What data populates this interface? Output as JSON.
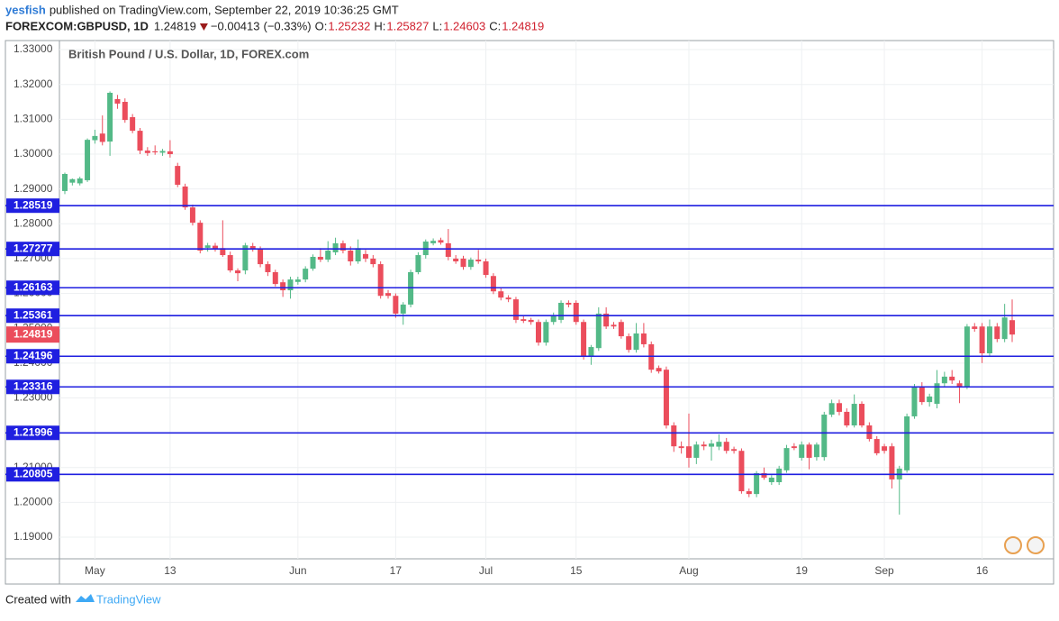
{
  "header": {
    "publisher": "yesfish",
    "published": "published on TradingView.com, September 22, 2019 10:36:25 GMT",
    "symbol": "FOREXCOM:GBPUSD, 1D",
    "change": {
      "value": -0.00413,
      "label": "−0.00413"
    },
    "change_pct": {
      "value": -0.33,
      "label": "(−0.33%)"
    },
    "ohlc_labels": [
      "O:",
      "H:",
      "L:",
      "C:"
    ]
  },
  "chart_data": {
    "type": "candlestick",
    "title": "British Pound / U.S. Dollar, 1D, FOREX.com",
    "up_color": "#53b987",
    "down_color": "#eb4d5c",
    "level_color": "#1f1fe0",
    "grid": true,
    "ylim": [
      1.1838,
      1.3326
    ],
    "yticks": [
      {
        "value": 1.33,
        "label": "1.33000"
      },
      {
        "value": 1.32,
        "label": "1.32000"
      },
      {
        "value": 1.31,
        "label": "1.31000"
      },
      {
        "value": 1.3,
        "label": "1.30000"
      },
      {
        "value": 1.29,
        "label": "1.29000"
      },
      {
        "value": 1.28,
        "label": "1.28000"
      },
      {
        "value": 1.27,
        "label": "1.27000"
      },
      {
        "value": 1.26,
        "label": "1.26000"
      },
      {
        "value": 1.25,
        "label": "1.25000"
      },
      {
        "value": 1.24,
        "label": "1.24000"
      },
      {
        "value": 1.23,
        "label": "1.23000"
      },
      {
        "value": 1.22,
        "label": "1.22000"
      },
      {
        "value": 1.21,
        "label": "1.21000"
      },
      {
        "value": 1.2,
        "label": "1.20000"
      },
      {
        "value": 1.19,
        "label": "1.19000"
      }
    ],
    "levels": [
      1.28519,
      1.27277,
      1.26163,
      1.25361,
      1.24196,
      1.23316,
      1.21996,
      1.20805
    ],
    "categories": [
      null,
      null,
      null,
      null,
      "May",
      null,
      null,
      null,
      null,
      null,
      null,
      null,
      null,
      null,
      "13",
      null,
      null,
      null,
      null,
      null,
      null,
      null,
      null,
      null,
      null,
      null,
      null,
      null,
      null,
      null,
      null,
      "Jun",
      null,
      null,
      null,
      null,
      null,
      null,
      null,
      null,
      null,
      null,
      null,
      null,
      "17",
      null,
      null,
      null,
      null,
      null,
      null,
      null,
      null,
      null,
      null,
      null,
      "Jul",
      null,
      null,
      null,
      null,
      null,
      null,
      null,
      null,
      null,
      null,
      null,
      "15",
      null,
      null,
      null,
      null,
      null,
      null,
      null,
      null,
      null,
      null,
      null,
      null,
      null,
      null,
      "Aug",
      null,
      null,
      null,
      null,
      null,
      null,
      null,
      null,
      null,
      null,
      null,
      null,
      null,
      null,
      "19",
      null,
      null,
      null,
      null,
      null,
      null,
      null,
      null,
      null,
      null,
      "Sep",
      null,
      null,
      null,
      null,
      null,
      null,
      null,
      null,
      null,
      null,
      null,
      null,
      "16",
      null,
      null,
      null,
      null
    ],
    "ohlc": [
      [
        1.2894,
        1.2947,
        1.2885,
        1.2943
      ],
      [
        1.2918,
        1.293,
        1.291,
        1.2928
      ],
      [
        1.2916,
        1.2935,
        1.291,
        1.293
      ],
      [
        1.2925,
        1.3045,
        1.292,
        1.3041
      ],
      [
        1.304,
        1.307,
        1.303,
        1.3052
      ],
      [
        1.3059,
        1.3111,
        1.3025,
        1.3035
      ],
      [
        1.3036,
        1.318,
        1.2995,
        1.3176
      ],
      [
        1.3158,
        1.317,
        1.313,
        1.3145
      ],
      [
        1.315,
        1.316,
        1.309,
        1.3098
      ],
      [
        1.3106,
        1.3115,
        1.306,
        1.3067
      ],
      [
        1.3067,
        1.3075,
        1.3,
        1.301
      ],
      [
        1.301,
        1.302,
        1.2995,
        1.3003
      ],
      [
        1.3008,
        1.3025,
        1.2998,
        1.3005
      ],
      [
        1.3004,
        1.3015,
        1.2995,
        1.3009
      ],
      [
        1.3008,
        1.304,
        1.299,
        1.3
      ],
      [
        1.2966,
        1.2975,
        1.2905,
        1.2912
      ],
      [
        1.2907,
        1.2915,
        1.284,
        1.2847
      ],
      [
        1.2847,
        1.2855,
        1.2795,
        1.2803
      ],
      [
        1.2803,
        1.281,
        1.2715,
        1.2723
      ],
      [
        1.2731,
        1.2745,
        1.272,
        1.2738
      ],
      [
        1.2737,
        1.2745,
        1.272,
        1.2729
      ],
      [
        1.273,
        1.281,
        1.2705,
        1.271
      ],
      [
        1.271,
        1.272,
        1.266,
        1.2666
      ],
      [
        1.2666,
        1.2672,
        1.2635,
        1.2658
      ],
      [
        1.2666,
        1.2745,
        1.2655,
        1.2738
      ],
      [
        1.2736,
        1.2745,
        1.272,
        1.2729
      ],
      [
        1.2728,
        1.2735,
        1.2675,
        1.2684
      ],
      [
        1.2684,
        1.2692,
        1.265,
        1.2661
      ],
      [
        1.2661,
        1.2668,
        1.262,
        1.2627
      ],
      [
        1.2632,
        1.264,
        1.259,
        1.2609
      ],
      [
        1.2609,
        1.2648,
        1.2585,
        1.264
      ],
      [
        1.2633,
        1.2648,
        1.2625,
        1.264
      ],
      [
        1.264,
        1.2678,
        1.2632,
        1.2671
      ],
      [
        1.2671,
        1.2712,
        1.2665,
        1.2705
      ],
      [
        1.2705,
        1.273,
        1.269,
        1.2697
      ],
      [
        1.2697,
        1.275,
        1.269,
        1.2723
      ],
      [
        1.2718,
        1.276,
        1.271,
        1.2744
      ],
      [
        1.2744,
        1.2752,
        1.2715,
        1.2723
      ],
      [
        1.2723,
        1.2735,
        1.268,
        1.2692
      ],
      [
        1.2692,
        1.2755,
        1.2685,
        1.273
      ],
      [
        1.2713,
        1.2725,
        1.269,
        1.27
      ],
      [
        1.27,
        1.271,
        1.2675,
        1.2684
      ],
      [
        1.2684,
        1.2692,
        1.2585,
        1.2593
      ],
      [
        1.2601,
        1.261,
        1.2585,
        1.2593
      ],
      [
        1.2593,
        1.26,
        1.253,
        1.2542
      ],
      [
        1.2542,
        1.2575,
        1.251,
        1.2568
      ],
      [
        1.2568,
        1.2668,
        1.256,
        1.2661
      ],
      [
        1.2661,
        1.2718,
        1.2655,
        1.271
      ],
      [
        1.271,
        1.2755,
        1.27,
        1.2749
      ],
      [
        1.2744,
        1.2758,
        1.2738,
        1.2751
      ],
      [
        1.2753,
        1.276,
        1.274,
        1.2746
      ],
      [
        1.2744,
        1.2785,
        1.2695,
        1.2705
      ],
      [
        1.27,
        1.271,
        1.2685,
        1.2692
      ],
      [
        1.27,
        1.2708,
        1.2668,
        1.2676
      ],
      [
        1.2676,
        1.2703,
        1.2668,
        1.2697
      ],
      [
        1.2697,
        1.2725,
        1.2685,
        1.2692
      ],
      [
        1.2692,
        1.27,
        1.2645,
        1.2653
      ],
      [
        1.265,
        1.2658,
        1.2598,
        1.2606
      ],
      [
        1.2606,
        1.2615,
        1.258,
        1.2588
      ],
      [
        1.2588,
        1.2595,
        1.2575,
        1.2583
      ],
      [
        1.2583,
        1.259,
        1.2515,
        1.2524
      ],
      [
        1.2526,
        1.2535,
        1.2515,
        1.2521
      ],
      [
        1.2524,
        1.253,
        1.251,
        1.2518
      ],
      [
        1.2518,
        1.2525,
        1.245,
        1.2459
      ],
      [
        1.2459,
        1.2525,
        1.245,
        1.2518
      ],
      [
        1.2518,
        1.2545,
        1.251,
        1.2536
      ],
      [
        1.2524,
        1.258,
        1.2515,
        1.2573
      ],
      [
        1.2573,
        1.258,
        1.256,
        1.2568
      ],
      [
        1.2573,
        1.258,
        1.251,
        1.2518
      ],
      [
        1.2518,
        1.2525,
        1.241,
        1.242
      ],
      [
        1.242,
        1.2452,
        1.2395,
        1.2446
      ],
      [
        1.2443,
        1.256,
        1.2435,
        1.2542
      ],
      [
        1.2542,
        1.256,
        1.2498,
        1.2505
      ],
      [
        1.251,
        1.2518,
        1.2498,
        1.2505
      ],
      [
        1.2518,
        1.2525,
        1.247,
        1.2477
      ],
      [
        1.2477,
        1.2485,
        1.243,
        1.2438
      ],
      [
        1.2438,
        1.2515,
        1.243,
        1.2485
      ],
      [
        1.2485,
        1.2515,
        1.2445,
        1.2454
      ],
      [
        1.2454,
        1.2462,
        1.2372,
        1.2381
      ],
      [
        1.2386,
        1.2393,
        1.237,
        1.2376
      ],
      [
        1.2381,
        1.239,
        1.2212,
        1.2221
      ],
      [
        1.2221,
        1.223,
        1.2145,
        1.2161
      ],
      [
        1.2161,
        1.2175,
        1.214,
        1.2156
      ],
      [
        1.2161,
        1.2255,
        1.21,
        1.2128
      ],
      [
        1.2128,
        1.2175,
        1.211,
        1.2166
      ],
      [
        1.2166,
        1.2175,
        1.215,
        1.2161
      ],
      [
        1.216,
        1.218,
        1.212,
        1.2169
      ],
      [
        1.216,
        1.2195,
        1.215,
        1.2174
      ],
      [
        1.2174,
        1.2185,
        1.214,
        1.2148
      ],
      [
        1.2153,
        1.216,
        1.214,
        1.2148
      ],
      [
        1.2148,
        1.2155,
        1.2025,
        1.2032
      ],
      [
        1.2032,
        1.204,
        1.2015,
        1.2024
      ],
      [
        1.2024,
        1.209,
        1.2015,
        1.2084
      ],
      [
        1.2084,
        1.21,
        1.2065,
        1.2071
      ],
      [
        1.2058,
        1.2078,
        1.205,
        1.2071
      ],
      [
        1.2058,
        1.2105,
        1.205,
        1.2097
      ],
      [
        1.2092,
        1.2165,
        1.2085,
        1.2156
      ],
      [
        1.2161,
        1.217,
        1.215,
        1.2156
      ],
      [
        1.2128,
        1.2175,
        1.212,
        1.2166
      ],
      [
        1.2166,
        1.2172,
        1.2095,
        1.2128
      ],
      [
        1.213,
        1.2172,
        1.212,
        1.2166
      ],
      [
        1.213,
        1.226,
        1.212,
        1.2252
      ],
      [
        1.2252,
        1.2295,
        1.2245,
        1.2285
      ],
      [
        1.2285,
        1.2295,
        1.225,
        1.226
      ],
      [
        1.226,
        1.227,
        1.2215,
        1.2221
      ],
      [
        1.2221,
        1.231,
        1.2215,
        1.2283
      ],
      [
        1.2283,
        1.229,
        1.2215,
        1.2221
      ],
      [
        1.2221,
        1.223,
        1.2175,
        1.2182
      ],
      [
        1.2182,
        1.219,
        1.2135,
        1.2141
      ],
      [
        1.2161,
        1.2168,
        1.214,
        1.2148
      ],
      [
        1.2161,
        1.217,
        1.204,
        1.2066
      ],
      [
        1.2066,
        1.2105,
        1.1965,
        1.2097
      ],
      [
        1.2092,
        1.2255,
        1.2085,
        1.2247
      ],
      [
        1.2247,
        1.234,
        1.224,
        1.233
      ],
      [
        1.233,
        1.2345,
        1.228,
        1.2288
      ],
      [
        1.2288,
        1.2312,
        1.2275,
        1.2304
      ],
      [
        1.2283,
        1.238,
        1.227,
        1.2342
      ],
      [
        1.2342,
        1.2375,
        1.233,
        1.2361
      ],
      [
        1.2361,
        1.238,
        1.234,
        1.235
      ],
      [
        1.2342,
        1.235,
        1.2285,
        1.233
      ],
      [
        1.233,
        1.2512,
        1.2325,
        1.2505
      ],
      [
        1.2505,
        1.2515,
        1.249,
        1.2498
      ],
      [
        1.2505,
        1.2515,
        1.24,
        1.2428
      ],
      [
        1.2428,
        1.2525,
        1.242,
        1.2505
      ],
      [
        1.2505,
        1.2515,
        1.246,
        1.2469
      ],
      [
        1.2469,
        1.257,
        1.246,
        1.2531
      ],
      [
        1.25232,
        1.25827,
        1.24603,
        1.24819
      ]
    ]
  },
  "footer": {
    "created_with": "Created with",
    "brand": "TradingView"
  }
}
